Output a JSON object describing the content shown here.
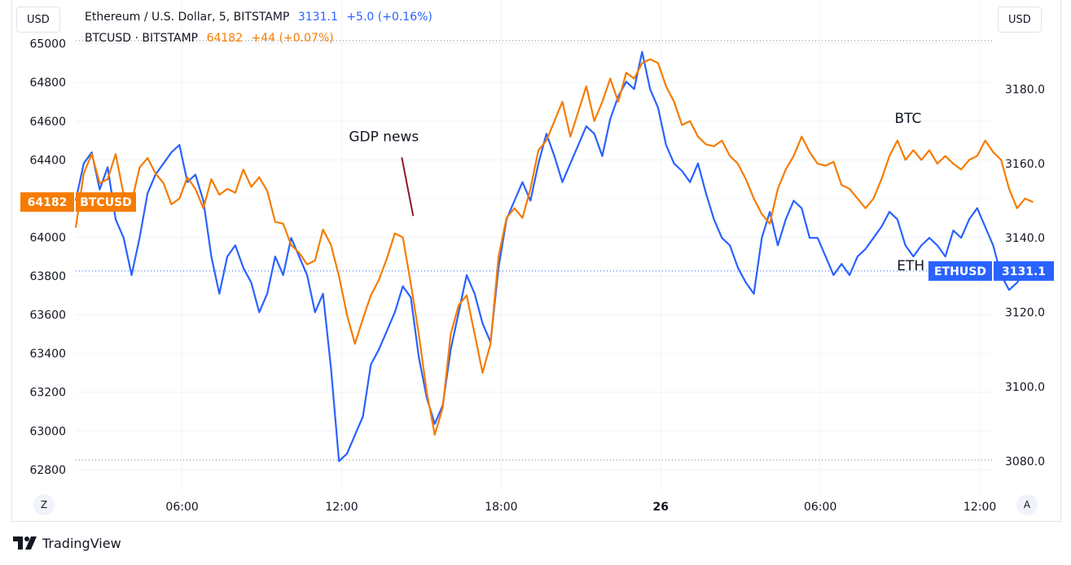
{
  "header": {
    "left_currency": "USD",
    "right_currency": "USD",
    "eth_title": "Ethereum / U.S. Dollar, 5, BITSTAMP",
    "eth_price": "3131.1",
    "eth_change": "+5.0 (+0.16%)",
    "btc_title": "BTCUSD · BITSTAMP",
    "btc_price": "64182",
    "btc_change": "+44 (+0.07%)"
  },
  "bottom": {
    "timezone_btn": "Z",
    "auto_btn": "A",
    "brand": "TradingView"
  },
  "colors": {
    "eth": "#2962ff",
    "btc": "#f57c00",
    "annotation": "#8b1a2b"
  },
  "chart_data": {
    "type": "line",
    "x_ticks": [
      "06:00",
      "12:00",
      "18:00",
      "26",
      "06:00",
      "12:00"
    ],
    "left_axis": {
      "label": "BTCUSD",
      "ticks": [
        62800,
        63000,
        63200,
        63400,
        63600,
        63800,
        64000,
        64200,
        64400,
        64600,
        64800,
        65000
      ],
      "range": [
        62690,
        65150
      ],
      "last_value_label": "64182",
      "series_tag": "BTCUSD"
    },
    "right_axis": {
      "label": "ETHUSD",
      "ticks": [
        "3080.0",
        "3100.0",
        "3120.0",
        "3140.0",
        "3160.0",
        "3180.0"
      ],
      "range": [
        3072,
        3200
      ],
      "last_value_label": "3131.1",
      "series_tag": "ETHUSD"
    },
    "annotations": [
      {
        "text": "GDP news",
        "x_hours": 12.2,
        "value": 64110
      },
      {
        "text": "BTC",
        "x_hours": 31.3,
        "value": 64590
      },
      {
        "text": "ETH",
        "x_hours": 31.4,
        "value": 63830
      }
    ],
    "series": [
      {
        "name": "BTCUSD",
        "axis": "left",
        "color": "#f57c00",
        "points": [
          [
            0,
            64050
          ],
          [
            0.3,
            64330
          ],
          [
            0.6,
            64430
          ],
          [
            0.9,
            64280
          ],
          [
            1.2,
            64300
          ],
          [
            1.5,
            64430
          ],
          [
            1.8,
            64220
          ],
          [
            2.1,
            64180
          ],
          [
            2.4,
            64360
          ],
          [
            2.7,
            64410
          ],
          [
            3,
            64330
          ],
          [
            3.3,
            64280
          ],
          [
            3.6,
            64170
          ],
          [
            3.9,
            64200
          ],
          [
            4.2,
            64310
          ],
          [
            4.5,
            64250
          ],
          [
            4.8,
            64150
          ],
          [
            5.1,
            64300
          ],
          [
            5.4,
            64220
          ],
          [
            5.7,
            64250
          ],
          [
            6,
            64230
          ],
          [
            6.3,
            64350
          ],
          [
            6.6,
            64260
          ],
          [
            6.9,
            64310
          ],
          [
            7.2,
            64240
          ],
          [
            7.5,
            64080
          ],
          [
            7.8,
            64070
          ],
          [
            8.1,
            63960
          ],
          [
            8.4,
            63920
          ],
          [
            8.7,
            63860
          ],
          [
            9,
            63880
          ],
          [
            9.3,
            64040
          ],
          [
            9.6,
            63960
          ],
          [
            9.9,
            63800
          ],
          [
            10.2,
            63600
          ],
          [
            10.5,
            63450
          ],
          [
            10.8,
            63580
          ],
          [
            11.1,
            63700
          ],
          [
            11.4,
            63780
          ],
          [
            11.7,
            63890
          ],
          [
            12,
            64020
          ],
          [
            12.3,
            64000
          ],
          [
            12.6,
            63760
          ],
          [
            12.9,
            63500
          ],
          [
            13.2,
            63200
          ],
          [
            13.5,
            62980
          ],
          [
            13.8,
            63120
          ],
          [
            14.1,
            63500
          ],
          [
            14.4,
            63650
          ],
          [
            14.7,
            63700
          ],
          [
            15,
            63500
          ],
          [
            15.3,
            63300
          ],
          [
            15.6,
            63450
          ],
          [
            15.9,
            63900
          ],
          [
            16.2,
            64100
          ],
          [
            16.5,
            64150
          ],
          [
            16.8,
            64100
          ],
          [
            17.1,
            64250
          ],
          [
            17.4,
            64450
          ],
          [
            17.7,
            64500
          ],
          [
            18,
            64600
          ],
          [
            18.3,
            64700
          ],
          [
            18.6,
            64520
          ],
          [
            18.9,
            64650
          ],
          [
            19.2,
            64780
          ],
          [
            19.5,
            64600
          ],
          [
            19.8,
            64700
          ],
          [
            20.1,
            64820
          ],
          [
            20.4,
            64700
          ],
          [
            20.7,
            64850
          ],
          [
            21,
            64820
          ],
          [
            21.3,
            64900
          ],
          [
            21.6,
            64920
          ],
          [
            21.9,
            64900
          ],
          [
            22.2,
            64780
          ],
          [
            22.5,
            64700
          ],
          [
            22.8,
            64580
          ],
          [
            23.1,
            64600
          ],
          [
            23.4,
            64520
          ],
          [
            23.7,
            64480
          ],
          [
            24,
            64470
          ],
          [
            24.3,
            64500
          ],
          [
            24.6,
            64420
          ],
          [
            24.9,
            64380
          ],
          [
            25.2,
            64300
          ],
          [
            25.5,
            64200
          ],
          [
            25.8,
            64120
          ],
          [
            26.1,
            64070
          ],
          [
            26.4,
            64250
          ],
          [
            26.7,
            64350
          ],
          [
            27,
            64420
          ],
          [
            27.3,
            64520
          ],
          [
            27.6,
            64440
          ],
          [
            27.9,
            64380
          ],
          [
            28.2,
            64370
          ],
          [
            28.5,
            64390
          ],
          [
            28.8,
            64270
          ],
          [
            29.1,
            64250
          ],
          [
            29.4,
            64200
          ],
          [
            29.7,
            64150
          ],
          [
            30,
            64200
          ],
          [
            30.3,
            64300
          ],
          [
            30.6,
            64420
          ],
          [
            30.9,
            64500
          ],
          [
            31.2,
            64400
          ],
          [
            31.5,
            64450
          ],
          [
            31.8,
            64400
          ],
          [
            32.1,
            64450
          ],
          [
            32.4,
            64380
          ],
          [
            32.7,
            64420
          ],
          [
            33,
            64380
          ],
          [
            33.3,
            64350
          ],
          [
            33.6,
            64400
          ],
          [
            33.9,
            64420
          ],
          [
            34.2,
            64500
          ],
          [
            34.5,
            64440
          ],
          [
            34.8,
            64400
          ],
          [
            35.1,
            64250
          ],
          [
            35.4,
            64150
          ],
          [
            35.7,
            64200
          ],
          [
            36,
            64182
          ]
        ]
      },
      {
        "name": "ETHUSD",
        "axis": "right",
        "color": "#2962ff",
        "points": [
          [
            0,
            3150
          ],
          [
            0.3,
            3160
          ],
          [
            0.6,
            3163
          ],
          [
            0.9,
            3153
          ],
          [
            1.2,
            3159
          ],
          [
            1.5,
            3145
          ],
          [
            1.8,
            3140
          ],
          [
            2.1,
            3130
          ],
          [
            2.4,
            3140
          ],
          [
            2.7,
            3152
          ],
          [
            3,
            3157
          ],
          [
            3.3,
            3160
          ],
          [
            3.6,
            3163
          ],
          [
            3.9,
            3165
          ],
          [
            4.2,
            3155
          ],
          [
            4.5,
            3157
          ],
          [
            4.8,
            3150
          ],
          [
            5.1,
            3135
          ],
          [
            5.4,
            3125
          ],
          [
            5.7,
            3135
          ],
          [
            6,
            3138
          ],
          [
            6.3,
            3132
          ],
          [
            6.6,
            3128
          ],
          [
            6.9,
            3120
          ],
          [
            7.2,
            3125
          ],
          [
            7.5,
            3135
          ],
          [
            7.8,
            3130
          ],
          [
            8.1,
            3140
          ],
          [
            8.4,
            3135
          ],
          [
            8.7,
            3130
          ],
          [
            9,
            3120
          ],
          [
            9.3,
            3125
          ],
          [
            9.6,
            3105
          ],
          [
            9.9,
            3080
          ],
          [
            10.2,
            3082
          ],
          [
            10.5,
            3087
          ],
          [
            10.8,
            3092
          ],
          [
            11.1,
            3106
          ],
          [
            11.4,
            3110
          ],
          [
            11.7,
            3115
          ],
          [
            12,
            3120
          ],
          [
            12.3,
            3127
          ],
          [
            12.6,
            3124
          ],
          [
            12.9,
            3108
          ],
          [
            13.2,
            3097
          ],
          [
            13.5,
            3090
          ],
          [
            13.8,
            3095
          ],
          [
            14.1,
            3110
          ],
          [
            14.4,
            3120
          ],
          [
            14.7,
            3130
          ],
          [
            15,
            3125
          ],
          [
            15.3,
            3117
          ],
          [
            15.6,
            3112
          ],
          [
            15.9,
            3132
          ],
          [
            16.2,
            3145
          ],
          [
            16.5,
            3150
          ],
          [
            16.8,
            3155
          ],
          [
            17.1,
            3150
          ],
          [
            17.4,
            3160
          ],
          [
            17.7,
            3168
          ],
          [
            18,
            3162
          ],
          [
            18.3,
            3155
          ],
          [
            18.6,
            3160
          ],
          [
            18.9,
            3165
          ],
          [
            19.2,
            3170
          ],
          [
            19.5,
            3168
          ],
          [
            19.8,
            3162
          ],
          [
            20.1,
            3172
          ],
          [
            20.4,
            3178
          ],
          [
            20.7,
            3182
          ],
          [
            21,
            3180
          ],
          [
            21.3,
            3190
          ],
          [
            21.6,
            3180
          ],
          [
            21.9,
            3175
          ],
          [
            22.2,
            3165
          ],
          [
            22.5,
            3160
          ],
          [
            22.8,
            3158
          ],
          [
            23.1,
            3155
          ],
          [
            23.4,
            3160
          ],
          [
            23.7,
            3152
          ],
          [
            24,
            3145
          ],
          [
            24.3,
            3140
          ],
          [
            24.6,
            3138
          ],
          [
            24.9,
            3132
          ],
          [
            25.2,
            3128
          ],
          [
            25.5,
            3125
          ],
          [
            25.8,
            3140
          ],
          [
            26.1,
            3147
          ],
          [
            26.4,
            3138
          ],
          [
            26.7,
            3145
          ],
          [
            27,
            3150
          ],
          [
            27.3,
            3148
          ],
          [
            27.6,
            3140
          ],
          [
            27.9,
            3140
          ],
          [
            28.2,
            3135
          ],
          [
            28.5,
            3130
          ],
          [
            28.8,
            3133
          ],
          [
            29.1,
            3130
          ],
          [
            29.4,
            3135
          ],
          [
            29.7,
            3137
          ],
          [
            30,
            3140
          ],
          [
            30.3,
            3143
          ],
          [
            30.6,
            3147
          ],
          [
            30.9,
            3145
          ],
          [
            31.2,
            3138
          ],
          [
            31.5,
            3135
          ],
          [
            31.8,
            3138
          ],
          [
            32.1,
            3140
          ],
          [
            32.4,
            3138
          ],
          [
            32.7,
            3135
          ],
          [
            33,
            3142
          ],
          [
            33.3,
            3140
          ],
          [
            33.6,
            3145
          ],
          [
            33.9,
            3148
          ],
          [
            34.2,
            3143
          ],
          [
            34.5,
            3138
          ],
          [
            34.8,
            3130
          ],
          [
            35.1,
            3126
          ],
          [
            35.4,
            3128
          ],
          [
            35.7,
            3131.1
          ]
        ]
      }
    ]
  }
}
